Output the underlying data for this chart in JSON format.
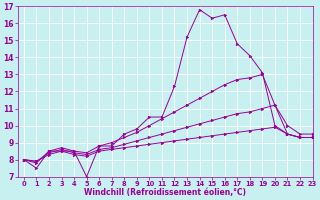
{
  "xlabel": "Windchill (Refroidissement éolien,°C)",
  "background_color": "#c8f0f0",
  "line_color": "#990099",
  "grid_color": "#ffffff",
  "xlim": [
    -0.5,
    23
  ],
  "ylim": [
    7,
    17
  ],
  "xticks": [
    0,
    1,
    2,
    3,
    4,
    5,
    6,
    7,
    8,
    9,
    10,
    11,
    12,
    13,
    14,
    15,
    16,
    17,
    18,
    19,
    20,
    21,
    22,
    23
  ],
  "yticks": [
    7,
    8,
    9,
    10,
    11,
    12,
    13,
    14,
    15,
    16,
    17
  ],
  "lines": [
    {
      "x": [
        0,
        1,
        2,
        3,
        4,
        5,
        6,
        7,
        8,
        9,
        10,
        11,
        12,
        13,
        14,
        15,
        16,
        17,
        18,
        19,
        20,
        21,
        22,
        23
      ],
      "y": [
        8.0,
        7.5,
        8.5,
        8.5,
        8.5,
        7.0,
        8.8,
        8.8,
        9.5,
        9.8,
        10.5,
        10.5,
        12.3,
        15.2,
        16.8,
        16.3,
        16.5,
        14.8,
        14.1,
        13.1,
        10.0,
        9.5,
        9.3,
        9.3
      ]
    },
    {
      "x": [
        0,
        1,
        2,
        3,
        4,
        5,
        6,
        7,
        8,
        9,
        10,
        11,
        12,
        13,
        14,
        15,
        16,
        17,
        18,
        19,
        20,
        21,
        22,
        23
      ],
      "y": [
        8.0,
        7.8,
        8.5,
        8.7,
        8.5,
        8.4,
        8.8,
        9.0,
        9.3,
        9.6,
        10.0,
        10.4,
        10.8,
        11.2,
        11.6,
        12.0,
        12.4,
        12.7,
        12.8,
        13.0,
        11.2,
        10.0,
        9.5,
        9.5
      ]
    },
    {
      "x": [
        0,
        1,
        2,
        3,
        4,
        5,
        6,
        7,
        8,
        9,
        10,
        11,
        12,
        13,
        14,
        15,
        16,
        17,
        18,
        19,
        20,
        21,
        22,
        23
      ],
      "y": [
        8.0,
        7.9,
        8.4,
        8.6,
        8.4,
        8.3,
        8.6,
        8.7,
        8.9,
        9.1,
        9.3,
        9.5,
        9.7,
        9.9,
        10.1,
        10.3,
        10.5,
        10.7,
        10.8,
        11.0,
        11.2,
        9.5,
        9.3,
        9.3
      ]
    },
    {
      "x": [
        0,
        1,
        2,
        3,
        4,
        5,
        6,
        7,
        8,
        9,
        10,
        11,
        12,
        13,
        14,
        15,
        16,
        17,
        18,
        19,
        20,
        21,
        22,
        23
      ],
      "y": [
        8.0,
        7.9,
        8.3,
        8.5,
        8.3,
        8.2,
        8.5,
        8.6,
        8.7,
        8.8,
        8.9,
        9.0,
        9.1,
        9.2,
        9.3,
        9.4,
        9.5,
        9.6,
        9.7,
        9.8,
        9.9,
        9.5,
        9.3,
        9.3
      ]
    }
  ]
}
